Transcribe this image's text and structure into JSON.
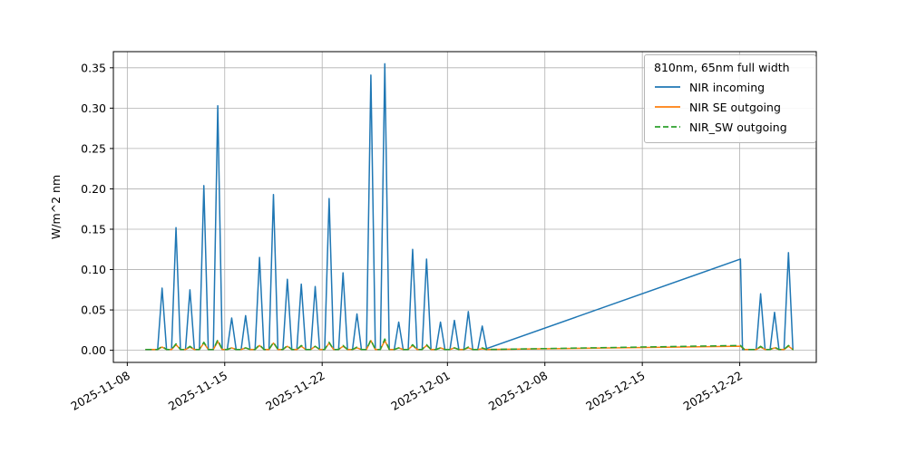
{
  "chart_data": {
    "type": "line",
    "title": "",
    "xlabel": "",
    "ylabel": "W/m^2 nm",
    "grid": true,
    "legend": {
      "title": "810nm, 65nm full width",
      "position": "upper right"
    },
    "colors": {
      "grid": "#b0b0b0",
      "axis": "#000000",
      "background": "#ffffff"
    },
    "x_unit": "day offset from 2025-11-08",
    "xlim": [
      -1,
      49.5
    ],
    "ylim": [
      -0.015,
      0.37
    ],
    "x_ticks": [
      {
        "day": 0,
        "label": "2025-11-08"
      },
      {
        "day": 7,
        "label": "2025-11-15"
      },
      {
        "day": 14,
        "label": "2025-11-22"
      },
      {
        "day": 23,
        "label": "2025-12-01"
      },
      {
        "day": 30,
        "label": "2025-12-08"
      },
      {
        "day": 37,
        "label": "2025-12-15"
      },
      {
        "day": 44,
        "label": "2025-12-22"
      }
    ],
    "y_ticks": [
      0.0,
      0.05,
      0.1,
      0.15,
      0.2,
      0.25,
      0.3,
      0.35
    ],
    "y_tick_labels": [
      "0.00",
      "0.05",
      "0.10",
      "0.15",
      "0.20",
      "0.25",
      "0.30",
      "0.35"
    ],
    "series": [
      {
        "name": "NIR incoming",
        "color": "#1f77b4",
        "style": "solid"
      },
      {
        "name": "NIR SE outgoing",
        "color": "#ff7f0e",
        "style": "solid"
      },
      {
        "name": "NIR_SW outgoing",
        "color": "#2ca02c",
        "style": "dashed"
      }
    ],
    "baseline": 0.001,
    "start_day": 1.3,
    "end_day": 47.85,
    "spike_half_width_days": 0.32,
    "daily_peaks": {
      "columns": [
        "day_offset",
        "NIR incoming",
        "NIR SE outgoing",
        "NIR_SW outgoing"
      ],
      "rows": [
        [
          2,
          0.077,
          0.004,
          0.005
        ],
        [
          3,
          0.152,
          0.007,
          0.008
        ],
        [
          4,
          0.075,
          0.004,
          0.005
        ],
        [
          5,
          0.204,
          0.009,
          0.01
        ],
        [
          6,
          0.303,
          0.011,
          0.013
        ],
        [
          7,
          0.04,
          0.003,
          0.003
        ],
        [
          8,
          0.043,
          0.003,
          0.003
        ],
        [
          9,
          0.115,
          0.006,
          0.007
        ],
        [
          10,
          0.193,
          0.009,
          0.01
        ],
        [
          11,
          0.088,
          0.005,
          0.006
        ],
        [
          12,
          0.082,
          0.005,
          0.006
        ],
        [
          13,
          0.079,
          0.005,
          0.005
        ],
        [
          14,
          0.188,
          0.009,
          0.01
        ],
        [
          15,
          0.096,
          0.005,
          0.006
        ],
        [
          16,
          0.045,
          0.003,
          0.004
        ],
        [
          17,
          0.341,
          0.012,
          0.013
        ],
        [
          18,
          0.355,
          0.012,
          0.014
        ],
        [
          19,
          0.035,
          0.003,
          0.003
        ],
        [
          20,
          0.125,
          0.006,
          0.007
        ],
        [
          21,
          0.113,
          0.006,
          0.007
        ],
        [
          22,
          0.035,
          0.003,
          0.003
        ],
        [
          23,
          0.037,
          0.003,
          0.003
        ],
        [
          24,
          0.048,
          0.003,
          0.004
        ],
        [
          25,
          0.03,
          0.002,
          0.003
        ],
        [
          45,
          0.07,
          0.004,
          0.005
        ],
        [
          46,
          0.047,
          0.003,
          0.004
        ],
        [
          47,
          0.121,
          0.005,
          0.006
        ]
      ]
    },
    "gap_line": {
      "start_day": 25.8,
      "end_day": 44.05,
      "incoming_start": 0.002,
      "incoming_peak": 0.113,
      "se_end": 0.005,
      "sw_end": 0.006
    }
  }
}
